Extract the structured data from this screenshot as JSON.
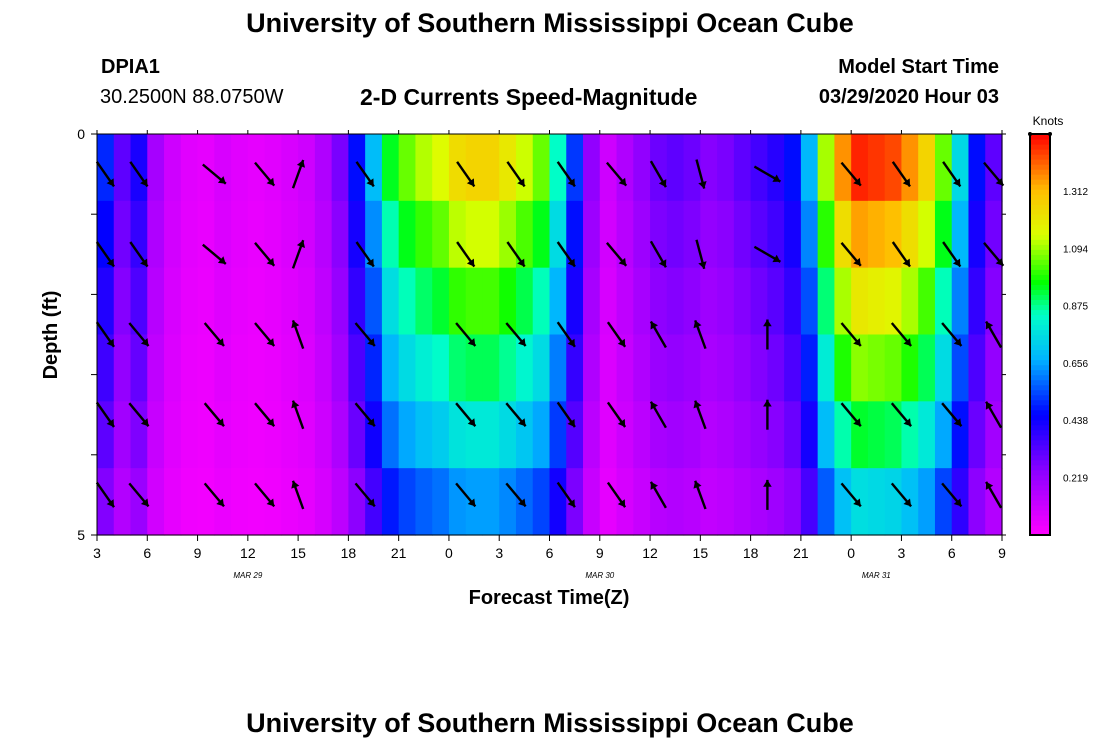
{
  "header": {
    "title": "University of Southern Mississippi Ocean Cube",
    "station": "DPIA1",
    "coords": "30.2500N 88.0750W",
    "subtitle": "2-D Currents Speed-Magnitude",
    "model_start_label": "Model Start Time",
    "model_start_value": "03/29/2020 Hour 03"
  },
  "footer": {
    "title": "University of Southern Mississippi Ocean Cube"
  },
  "chart_data": {
    "type": "heatmap",
    "xlabel": "Forecast Time(Z)",
    "ylabel": "Depth (ft)",
    "x_ticks": [
      "3",
      "6",
      "9",
      "12",
      "15",
      "18",
      "21",
      "0",
      "3",
      "6",
      "9",
      "12",
      "15",
      "18",
      "21",
      "0",
      "3",
      "6",
      "9"
    ],
    "date_labels": [
      {
        "label": "MAR 29",
        "tick_index": 3
      },
      {
        "label": "MAR 30",
        "tick_index": 10
      },
      {
        "label": "MAR 31",
        "tick_index": 15.5
      }
    ],
    "y_ticks": [
      "0",
      "5"
    ],
    "ylim": [
      0,
      5
    ],
    "x_range_hours": [
      0,
      54
    ],
    "colorbar": {
      "title": "Knots",
      "ticks": [
        "0.219",
        "0.438",
        "0.656",
        "0.875",
        "1.094",
        "1.312"
      ],
      "range": [
        0,
        1.53
      ]
    },
    "column_profile": [
      {
        "h": 0,
        "v": 0.48
      },
      {
        "h": 1,
        "v": 0.3
      },
      {
        "h": 2,
        "v": 0.4
      },
      {
        "h": 3,
        "v": 0.18
      },
      {
        "h": 4,
        "v": 0.1
      },
      {
        "h": 5,
        "v": 0.06
      },
      {
        "h": 6,
        "v": 0.05
      },
      {
        "h": 7,
        "v": 0.08
      },
      {
        "h": 8,
        "v": 0.06
      },
      {
        "h": 9,
        "v": 0.05
      },
      {
        "h": 10,
        "v": 0.06
      },
      {
        "h": 11,
        "v": 0.08
      },
      {
        "h": 12,
        "v": 0.1
      },
      {
        "h": 13,
        "v": 0.16
      },
      {
        "h": 14,
        "v": 0.26
      },
      {
        "h": 15,
        "v": 0.45
      },
      {
        "h": 16,
        "v": 0.66
      },
      {
        "h": 17,
        "v": 0.9
      },
      {
        "h": 18,
        "v": 1.0
      },
      {
        "h": 19,
        "v": 1.06
      },
      {
        "h": 20,
        "v": 1.1
      },
      {
        "h": 21,
        "v": 1.18
      },
      {
        "h": 22,
        "v": 1.2
      },
      {
        "h": 23,
        "v": 1.2
      },
      {
        "h": 24,
        "v": 1.15
      },
      {
        "h": 25,
        "v": 1.08
      },
      {
        "h": 26,
        "v": 1.0
      },
      {
        "h": 27,
        "v": 0.8
      },
      {
        "h": 28,
        "v": 0.5
      },
      {
        "h": 29,
        "v": 0.22
      },
      {
        "h": 30,
        "v": 0.1
      },
      {
        "h": 31,
        "v": 0.16
      },
      {
        "h": 32,
        "v": 0.22
      },
      {
        "h": 33,
        "v": 0.28
      },
      {
        "h": 34,
        "v": 0.3
      },
      {
        "h": 35,
        "v": 0.28
      },
      {
        "h": 36,
        "v": 0.24
      },
      {
        "h": 37,
        "v": 0.26
      },
      {
        "h": 38,
        "v": 0.3
      },
      {
        "h": 39,
        "v": 0.34
      },
      {
        "h": 40,
        "v": 0.38
      },
      {
        "h": 41,
        "v": 0.45
      },
      {
        "h": 42,
        "v": 0.65
      },
      {
        "h": 43,
        "v": 1.05
      },
      {
        "h": 44,
        "v": 1.3
      },
      {
        "h": 45,
        "v": 1.42
      },
      {
        "h": 46,
        "v": 1.4
      },
      {
        "h": 47,
        "v": 1.38
      },
      {
        "h": 48,
        "v": 1.3
      },
      {
        "h": 49,
        "v": 1.2
      },
      {
        "h": 50,
        "v": 1.0
      },
      {
        "h": 51,
        "v": 0.72
      },
      {
        "h": 52,
        "v": 0.45
      },
      {
        "h": 53,
        "v": 0.3
      },
      {
        "h": 54,
        "v": 0.5
      }
    ],
    "depth_factors": [
      1.05,
      0.95,
      0.85,
      0.76,
      0.66,
      0.54
    ],
    "arrows": {
      "columns": [
        {
          "h": 0.5,
          "surface_dir": 145,
          "deep_dir": 145
        },
        {
          "h": 2.5,
          "surface_dir": 145,
          "deep_dir": 140
        },
        {
          "h": 7,
          "surface_dir": 130,
          "deep_dir": 140
        },
        {
          "h": 10,
          "surface_dir": 140,
          "deep_dir": 140
        },
        {
          "h": 12,
          "surface_dir": 20,
          "deep_dir": 340
        },
        {
          "h": 16,
          "surface_dir": 145,
          "deep_dir": 140
        },
        {
          "h": 22,
          "surface_dir": 145,
          "deep_dir": 140
        },
        {
          "h": 25,
          "surface_dir": 145,
          "deep_dir": 140
        },
        {
          "h": 28,
          "surface_dir": 145,
          "deep_dir": 145
        },
        {
          "h": 31,
          "surface_dir": 140,
          "deep_dir": 145
        },
        {
          "h": 33.5,
          "surface_dir": 150,
          "deep_dir": 330
        },
        {
          "h": 36,
          "surface_dir": 165,
          "deep_dir": 340
        },
        {
          "h": 40,
          "surface_dir": 120,
          "deep_dir": 0
        },
        {
          "h": 45,
          "surface_dir": 140,
          "deep_dir": 140
        },
        {
          "h": 48,
          "surface_dir": 145,
          "deep_dir": 140
        },
        {
          "h": 51,
          "surface_dir": 145,
          "deep_dir": 140
        },
        {
          "h": 53.5,
          "surface_dir": 140,
          "deep_dir": 330
        }
      ],
      "depth_rows": [
        0.5,
        1.5,
        2.5,
        3.5,
        4.5
      ]
    }
  }
}
